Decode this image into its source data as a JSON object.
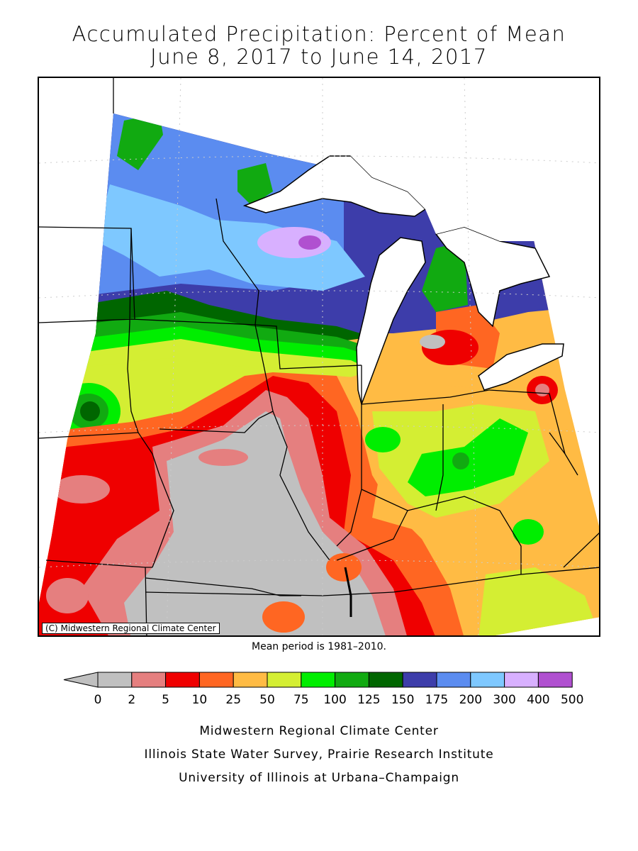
{
  "title": {
    "line1": "Accumulated Precipitation: Percent of Mean",
    "line2": "June 8, 2017 to June 14, 2017"
  },
  "map": {
    "copyright": "(C) Midwestern Regional Climate Center",
    "mean_period": "Mean period is 1981–2010."
  },
  "legend": {
    "ticks": [
      "0",
      "2",
      "5",
      "10",
      "25",
      "50",
      "75",
      "100",
      "125",
      "150",
      "175",
      "200",
      "300",
      "400",
      "500"
    ],
    "colors": [
      "#c0c0c0",
      "#e57f7f",
      "#ef0000",
      "#ff6622",
      "#ffbb44",
      "#d4ee33",
      "#00ee00",
      "#11aa11",
      "#006600",
      "#3d3daa",
      "#5b8cf0",
      "#7ec8ff",
      "#d8b0ff",
      "#b050d0"
    ],
    "below_range_color": "#c0c0c0"
  },
  "footer": {
    "line1": "Midwestern Regional Climate Center",
    "line2": "Illinois State Water Survey, Prairie Research Institute",
    "line3": "University of Illinois at Urbana–Champaign"
  },
  "colors": {
    "lakes": "#ffffff",
    "outside": "#ffffff",
    "borders": "#000000"
  }
}
